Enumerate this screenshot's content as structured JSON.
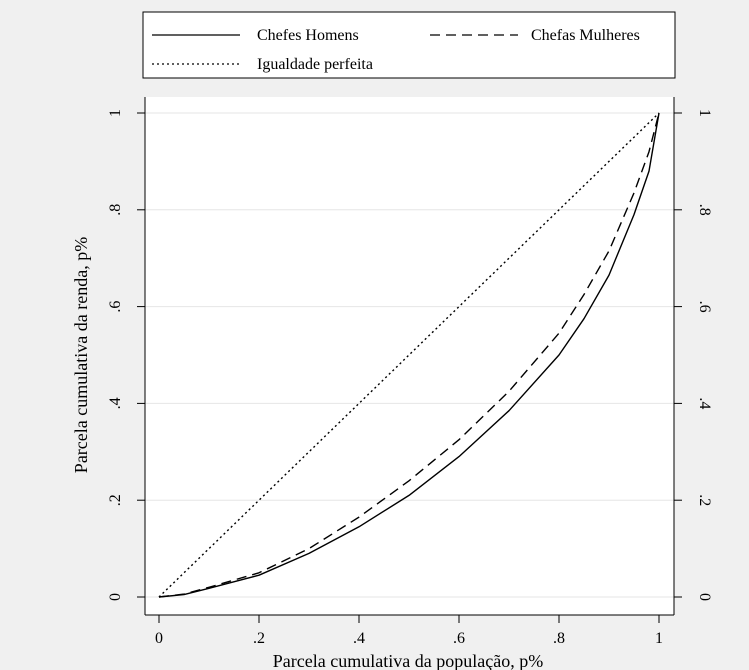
{
  "chart_data": {
    "type": "line",
    "title": "",
    "xlabel": "Parcela cumulativa da população, p%",
    "ylabel": "Parcela cumulativa da renda, p%",
    "xlim": [
      0,
      1
    ],
    "ylim": [
      0,
      1
    ],
    "x_ticks": [
      {
        "value": 0,
        "label": "0"
      },
      {
        "value": 0.2,
        "label": ".2"
      },
      {
        "value": 0.4,
        "label": ".4"
      },
      {
        "value": 0.6,
        "label": ".6"
      },
      {
        "value": 0.8,
        "label": ".8"
      },
      {
        "value": 1,
        "label": "1"
      }
    ],
    "y_ticks": [
      {
        "value": 0,
        "label": "0"
      },
      {
        "value": 0.2,
        "label": ".2"
      },
      {
        "value": 0.4,
        "label": ".4"
      },
      {
        "value": 0.6,
        "label": ".6"
      },
      {
        "value": 0.8,
        "label": ".8"
      },
      {
        "value": 1,
        "label": "1"
      }
    ],
    "grid": "horizontal",
    "legend_position": "top",
    "series": [
      {
        "name": "Chefes Homens",
        "style": "solid",
        "x": [
          0,
          0.05,
          0.1,
          0.2,
          0.3,
          0.4,
          0.5,
          0.6,
          0.7,
          0.8,
          0.85,
          0.9,
          0.95,
          0.98,
          1
        ],
        "y": [
          0,
          0.005,
          0.018,
          0.045,
          0.09,
          0.145,
          0.21,
          0.29,
          0.385,
          0.5,
          0.575,
          0.665,
          0.79,
          0.88,
          1
        ]
      },
      {
        "name": "Chefas Mulheres",
        "style": "dashed",
        "x": [
          0,
          0.05,
          0.1,
          0.2,
          0.3,
          0.4,
          0.5,
          0.6,
          0.7,
          0.8,
          0.85,
          0.9,
          0.95,
          0.98,
          1
        ],
        "y": [
          0,
          0.006,
          0.02,
          0.05,
          0.1,
          0.165,
          0.24,
          0.325,
          0.425,
          0.545,
          0.625,
          0.715,
          0.835,
          0.92,
          1
        ]
      },
      {
        "name": "Igualdade perfeita",
        "style": "dotted",
        "x": [
          0,
          1
        ],
        "y": [
          0,
          1
        ]
      }
    ]
  }
}
